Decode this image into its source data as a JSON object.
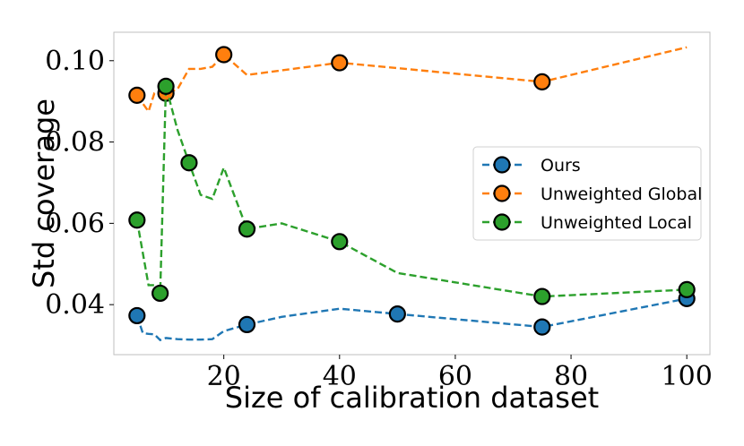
{
  "chart_data": {
    "type": "line",
    "title": "",
    "xlabel": "Size of calibration dataset",
    "ylabel": "Std coverage",
    "xlim": [
      1,
      104
    ],
    "ylim": [
      0.0277,
      0.107
    ],
    "xticks": [
      20,
      40,
      60,
      80,
      100
    ],
    "xtick_labels": [
      "20",
      "40",
      "60",
      "80",
      "100"
    ],
    "yticks": [
      0.04,
      0.06,
      0.08,
      0.1
    ],
    "ytick_labels": [
      "0.04",
      "0.06",
      "0.08",
      "0.10"
    ],
    "grid": false,
    "legend_position": "center-right",
    "series": [
      {
        "name": "Ours",
        "color": "#1f77b4",
        "x": [
          5,
          6,
          7,
          8,
          9,
          10,
          12,
          14,
          16,
          18,
          20,
          24,
          30,
          40,
          50,
          75,
          100
        ],
        "y": [
          0.0373,
          0.033,
          0.0328,
          0.0327,
          0.0313,
          0.0318,
          0.0315,
          0.0314,
          0.0314,
          0.0315,
          0.0335,
          0.0351,
          0.037,
          0.039,
          0.0377,
          0.0345,
          0.0415
        ],
        "markers_x": [
          5,
          24,
          50,
          75,
          100
        ],
        "markers_y": [
          0.0373,
          0.0351,
          0.0377,
          0.0345,
          0.0415
        ]
      },
      {
        "name": "Unweighted Global",
        "color": "#ff7f0e",
        "x": [
          5,
          7,
          8,
          9,
          10,
          12,
          14,
          16,
          18,
          20,
          24,
          40,
          75,
          100
        ],
        "y": [
          0.0915,
          0.0875,
          0.092,
          0.0925,
          0.092,
          0.093,
          0.098,
          0.098,
          0.0985,
          0.1015,
          0.0965,
          0.0995,
          0.0948,
          0.1033
        ],
        "markers_x": [
          5,
          10,
          20,
          40,
          75
        ],
        "markers_y": [
          0.0915,
          0.092,
          0.1015,
          0.0995,
          0.0948
        ]
      },
      {
        "name": "Unweighted Local",
        "color": "#2ca02c",
        "x": [
          5,
          7,
          8,
          9,
          10,
          12,
          14,
          16,
          18,
          20,
          24,
          30,
          40,
          50,
          75,
          100
        ],
        "y": [
          0.0608,
          0.0448,
          0.0448,
          0.0428,
          0.0937,
          0.083,
          0.0749,
          0.067,
          0.066,
          0.0737,
          0.0586,
          0.06,
          0.0555,
          0.0478,
          0.042,
          0.0437
        ],
        "markers_x": [
          5,
          9,
          10,
          14,
          24,
          40,
          75,
          100
        ],
        "markers_y": [
          0.0608,
          0.0428,
          0.0937,
          0.0749,
          0.0586,
          0.0555,
          0.042,
          0.0437
        ]
      }
    ]
  }
}
